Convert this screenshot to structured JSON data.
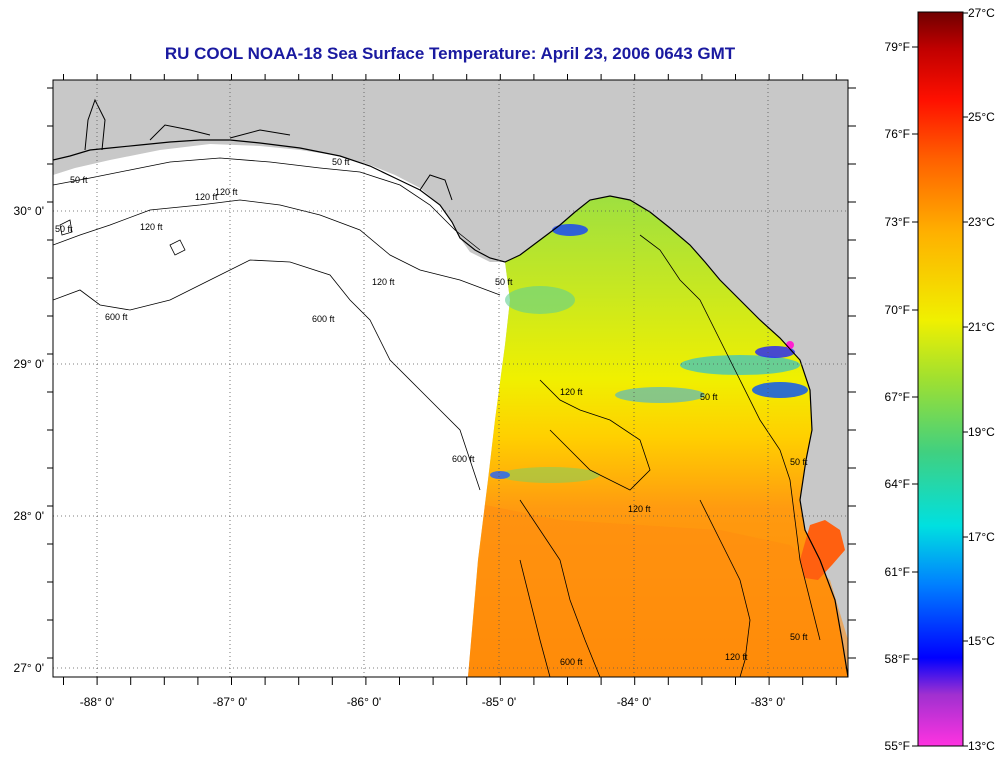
{
  "title": "RU COOL  NOAA-18  Sea Surface Temperature:  April 23, 2006 0643 GMT",
  "map": {
    "lon_labels": [
      "-88° 0'",
      "-87° 0'",
      "-86° 0'",
      "-85° 0'",
      "-84° 0'",
      "-83° 0'"
    ],
    "lat_labels": [
      "30° 0'",
      "29° 0'",
      "28° 0'",
      "27° 0'"
    ],
    "contour_labels": [
      "50 ft",
      "50 ft",
      "120 ft",
      "120 ft",
      "120 ft",
      "600 ft",
      "600 ft",
      "600 ft",
      "120 ft",
      "120 ft",
      "50 ft",
      "120 ft",
      "50 ft",
      "600 ft",
      "120 ft",
      "50 ft",
      "50 ft",
      "50 ft"
    ],
    "colors": {
      "land": "#c8c8c8",
      "nodata": "#ffffff",
      "grid": "#000000"
    }
  },
  "colorbar": {
    "fahrenheit_labels": [
      "79°F",
      "76°F",
      "73°F",
      "70°F",
      "67°F",
      "64°F",
      "61°F",
      "58°F",
      "55°F"
    ],
    "celsius_labels": [
      "27°C",
      "25°C",
      "23°C",
      "21°C",
      "19°C",
      "17°C",
      "15°C",
      "13°C"
    ],
    "range_c": [
      13,
      27
    ],
    "colors": [
      "#ff33e0",
      "#7a2cd6",
      "#0000ff",
      "#0090ff",
      "#00e0e0",
      "#3cd080",
      "#a0e030",
      "#f0f000",
      "#ffc000",
      "#ff8000",
      "#ff4000",
      "#ff0000",
      "#c80000",
      "#800000"
    ]
  }
}
